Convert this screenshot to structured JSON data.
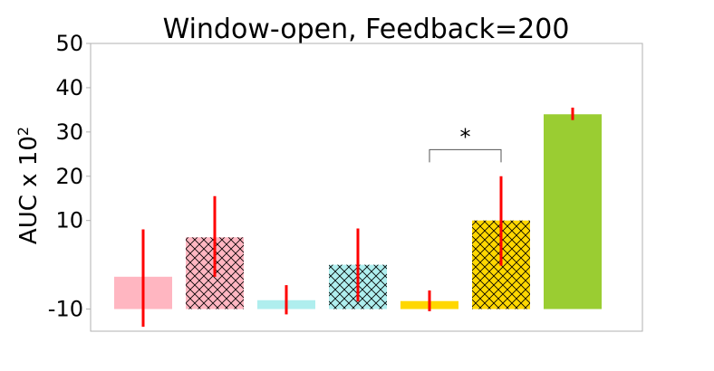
{
  "chart_data": {
    "type": "bar",
    "title": "Window-open, Feedback=200",
    "xlabel": "",
    "ylabel": "AUC x 10",
    "ylabel_superscript": "2",
    "ylim": [
      -15,
      50
    ],
    "yticks": [
      {
        "value": -10,
        "label": "-10"
      },
      {
        "value": 10,
        "label": "10"
      },
      {
        "value": 20,
        "label": "20"
      },
      {
        "value": 30,
        "label": "30"
      },
      {
        "value": 40,
        "label": "40"
      },
      {
        "value": 50,
        "label": "50"
      }
    ],
    "baseline": -10,
    "bars": [
      {
        "value": -2.7,
        "err_low": -14.0,
        "err_high": 8.0,
        "color": "#FFB6C1",
        "hatch": false
      },
      {
        "value": 6.2,
        "err_low": -2.7,
        "err_high": 15.5,
        "color": "#FFB6C1",
        "hatch": true
      },
      {
        "value": -8.0,
        "err_low": -11.2,
        "err_high": -4.6,
        "color": "#AFEEEE",
        "hatch": false
      },
      {
        "value": 0.0,
        "err_low": -8.3,
        "err_high": 8.2,
        "color": "#AFEEEE",
        "hatch": true
      },
      {
        "value": -8.2,
        "err_low": -10.5,
        "err_high": -5.8,
        "color": "#FFD700",
        "hatch": false
      },
      {
        "value": 10.0,
        "err_low": -0.2,
        "err_high": 20.0,
        "color": "#FFD700",
        "hatch": true
      },
      {
        "value": 34.0,
        "err_low": 32.7,
        "err_high": 35.5,
        "color": "#9ACD32",
        "hatch": false
      }
    ],
    "error_color": "#FF0000",
    "annotation": {
      "text": "*",
      "from_bar": 4,
      "to_bar": 5,
      "y": 26.0
    },
    "grid": false,
    "legend": "none"
  }
}
